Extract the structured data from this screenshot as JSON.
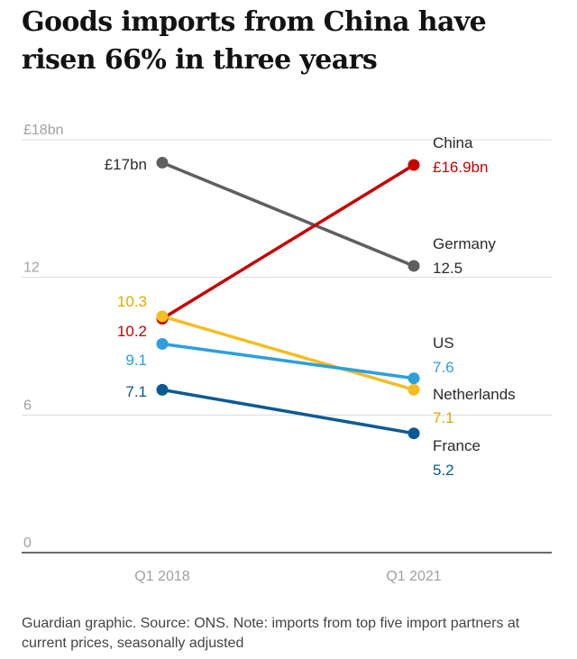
{
  "title": "Goods imports from China have risen 66% in three years",
  "footnote": "Guardian graphic. Source: ONS. Note: imports from top five import partners at current prices, seasonally adjusted",
  "chart_data": {
    "type": "line",
    "title": "Goods imports from China have risen 66% in three years",
    "x": [
      "Q1 2018",
      "Q1 2021"
    ],
    "xlabel": "",
    "ylabel": "",
    "ylim": [
      0,
      18
    ],
    "yticks": [
      0,
      6,
      12,
      18
    ],
    "ytick_labels": [
      "0",
      "6",
      "12",
      "£18bn"
    ],
    "grid": true,
    "legend": "direct labels at line ends",
    "series": [
      {
        "name": "Germany",
        "values": [
          17,
          12.5
        ],
        "color": "#5f5f5f",
        "start_label": "£17bn",
        "end_label": "12.5",
        "end_label_color": "#2a2a2a"
      },
      {
        "name": "China",
        "values": [
          10.2,
          16.9
        ],
        "color": "#c70000",
        "start_label": "10.2",
        "end_label": "£16.9bn",
        "end_label_color": "#c70000"
      },
      {
        "name": "Netherlands",
        "values": [
          10.3,
          7.1
        ],
        "color": "#f5bd24",
        "start_label": "10.3",
        "end_label": "7.1",
        "end_label_color": "#e0a800"
      },
      {
        "name": "US",
        "values": [
          9.1,
          7.6
        ],
        "color": "#2d9fdc",
        "start_label": "9.1",
        "end_label": "7.6",
        "end_label_color": "#2d9fdc"
      },
      {
        "name": "France",
        "values": [
          7.1,
          5.2
        ],
        "color": "#0b5a94",
        "start_label": "7.1",
        "end_label": "5.2",
        "end_label_color": "#0b5a94"
      }
    ]
  }
}
